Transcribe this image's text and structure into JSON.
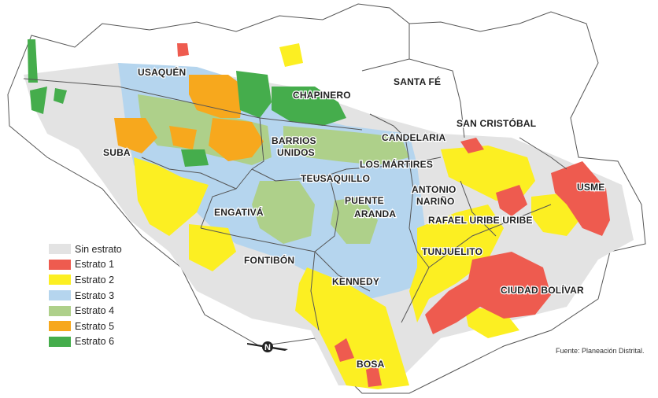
{
  "map": {
    "localities": [
      {
        "id": "usaquen",
        "name": "USAQUÉN"
      },
      {
        "id": "chapinero",
        "name": "CHAPINERO"
      },
      {
        "id": "santa-fe",
        "name": "SANTA FÉ"
      },
      {
        "id": "san-cristobal",
        "name": "SAN CRISTÓBAL"
      },
      {
        "id": "suba",
        "name": "SUBA"
      },
      {
        "id": "barrios-unidos",
        "name_line1": "BARRIOS",
        "name_line2": "UNIDOS"
      },
      {
        "id": "candelaria",
        "name": "CANDELARIA"
      },
      {
        "id": "los-martires",
        "name": "LOS MÁRTIRES"
      },
      {
        "id": "teusaquillo",
        "name": "TEUSAQUILLO"
      },
      {
        "id": "antonio-narino",
        "name_line1": "ANTONIO",
        "name_line2": "NARIÑO"
      },
      {
        "id": "usme",
        "name": "USME"
      },
      {
        "id": "engativa",
        "name": "ENGATIVÁ"
      },
      {
        "id": "puente-aranda",
        "name_line1": "PUENTE",
        "name_line2": "ARANDA"
      },
      {
        "id": "rafael-uribe",
        "name": "RAFAEL URIBE URIBE"
      },
      {
        "id": "tunjuelito",
        "name": "TUNJUELITO"
      },
      {
        "id": "fontibon",
        "name": "FONTIBÓN"
      },
      {
        "id": "kennedy",
        "name": "KENNEDY"
      },
      {
        "id": "ciudad-bolivar",
        "name": "CIUDAD BOLÍVAR"
      },
      {
        "id": "bosa",
        "name": "BOSA"
      }
    ],
    "north_label": "N"
  },
  "legend": {
    "items": [
      {
        "label": "Sin estrato",
        "color": "#e3e3e3"
      },
      {
        "label": "Estrato 1",
        "color": "#ee5b4f"
      },
      {
        "label": "Estrato 2",
        "color": "#fcef22"
      },
      {
        "label": "Estrato 3",
        "color": "#b5d5ee"
      },
      {
        "label": "Estrato 4",
        "color": "#aed08a"
      },
      {
        "label": "Estrato 5",
        "color": "#f7a81d"
      },
      {
        "label": "Estrato 6",
        "color": "#45ad4c"
      }
    ]
  },
  "source": "Fuente: Planeación Distrital."
}
